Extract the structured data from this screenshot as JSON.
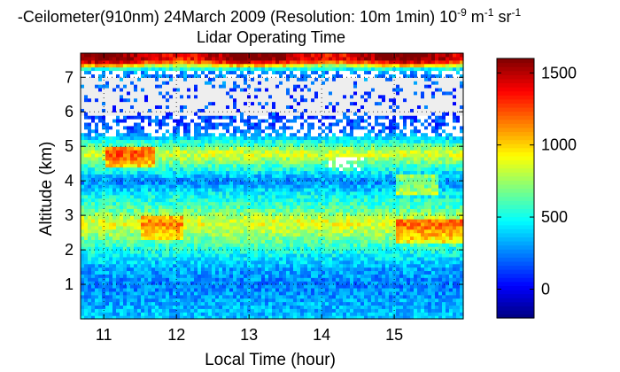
{
  "chart_data": {
    "type": "heatmap",
    "title_part1": "-Ceilometer(910nm) 24March 2009 (Resolution: 10m 1min) 10",
    "title_part1_exp": "-9",
    "title_part2": " m",
    "title_part2_exp": "-1",
    "title_part3": " sr",
    "title_part3_exp": "-1",
    "subtitle": "Lidar Operating Time",
    "xlabel": "Local Time (hour)",
    "ylabel": "Altitude (km)",
    "xlim": [
      10.68,
      15.95
    ],
    "ylim": [
      0,
      7.7
    ],
    "xticks": [
      11,
      12,
      13,
      14,
      15
    ],
    "yticks": [
      1,
      2,
      3,
      4,
      5,
      6,
      7
    ],
    "grid": true,
    "colorbar": {
      "range": [
        -200,
        1600
      ],
      "ticks": [
        0,
        500,
        1000,
        1500
      ],
      "colormap": "jet"
    },
    "data_description": "Altitude-time backscatter intensity; values encoded per cell in a 0-1600 scale with gaps (white) in the 5.4-7.2 km band",
    "profile_levels": [
      {
        "alt": 0.0,
        "value": 380
      },
      {
        "alt": 0.5,
        "value": 320
      },
      {
        "alt": 1.0,
        "value": 250
      },
      {
        "alt": 1.5,
        "value": 330
      },
      {
        "alt": 2.0,
        "value": 520
      },
      {
        "alt": 2.5,
        "value": 760
      },
      {
        "alt": 2.8,
        "value": 900
      },
      {
        "alt": 3.2,
        "value": 620
      },
      {
        "alt": 3.6,
        "value": 480
      },
      {
        "alt": 4.0,
        "value": 260
      },
      {
        "alt": 4.4,
        "value": 560
      },
      {
        "alt": 4.8,
        "value": 880
      },
      {
        "alt": 5.2,
        "value": 460
      },
      {
        "alt": 5.5,
        "value": 180
      },
      {
        "alt": 6.5,
        "value": 120
      },
      {
        "alt": 7.2,
        "value": 300
      },
      {
        "alt": 7.5,
        "value": 1500
      }
    ]
  }
}
